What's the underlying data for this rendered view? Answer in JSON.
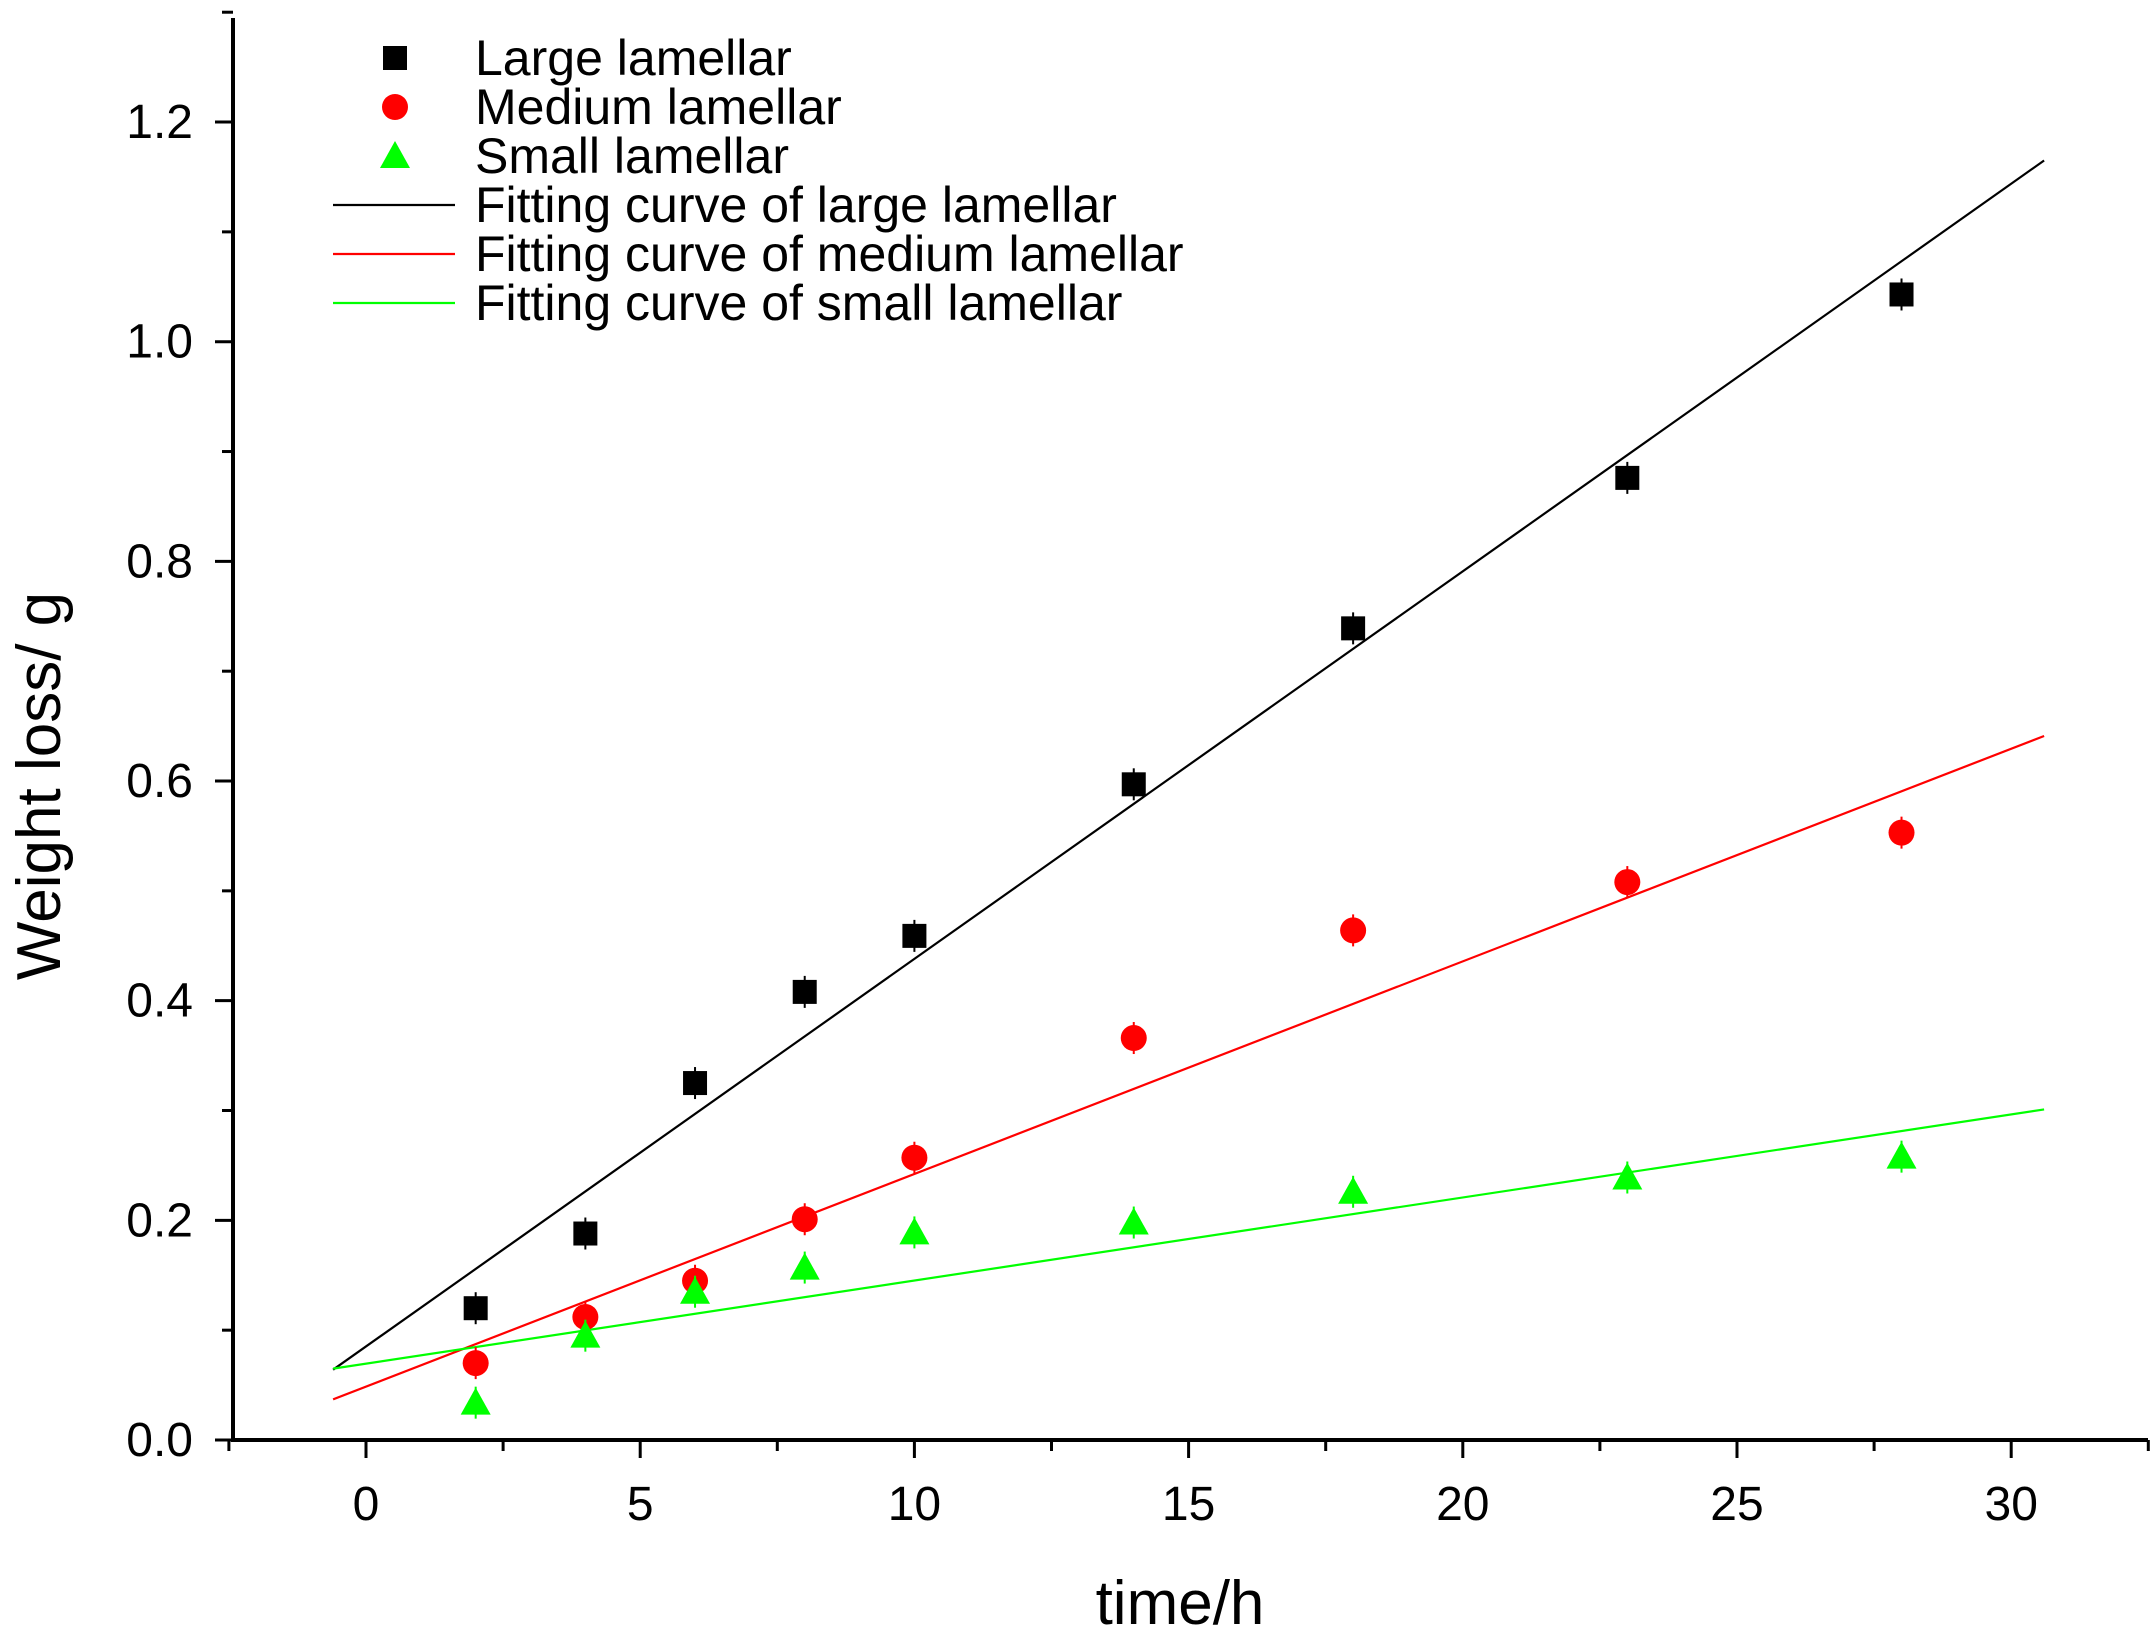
{
  "chart_data": {
    "type": "scatter",
    "title": "",
    "xlabel": "time/h",
    "ylabel": "Weight loss/ g",
    "xlim": [
      -2.5,
      32.5
    ],
    "ylim": [
      0.0,
      1.3
    ],
    "x_ticks": [
      0,
      5,
      10,
      15,
      20,
      25,
      30
    ],
    "x_tick_labels": [
      "0",
      "5",
      "10",
      "15",
      "20",
      "25",
      "30"
    ],
    "y_ticks": [
      0.0,
      0.2,
      0.4,
      0.6,
      0.8,
      1.0,
      1.2
    ],
    "y_tick_labels": [
      "0.0",
      "0.2",
      "0.4",
      "0.6",
      "0.8",
      "1.0",
      "1.2"
    ],
    "grid": false,
    "legend_position": "top-left",
    "series": [
      {
        "name": "Large lamellar",
        "kind": "scatter",
        "marker": "square",
        "color": "#000000",
        "x": [
          2,
          4,
          6,
          8,
          10,
          14,
          18,
          23,
          28
        ],
        "y": [
          0.12,
          0.188,
          0.325,
          0.408,
          0.459,
          0.597,
          0.739,
          0.876,
          1.043
        ]
      },
      {
        "name": "Medium lamellar",
        "kind": "scatter",
        "marker": "circle",
        "color": "#ff0000",
        "x": [
          2,
          4,
          6,
          8,
          10,
          14,
          18,
          23,
          28
        ],
        "y": [
          0.07,
          0.112,
          0.145,
          0.201,
          0.257,
          0.366,
          0.464,
          0.508,
          0.553
        ]
      },
      {
        "name": "Small lamellar",
        "kind": "scatter",
        "marker": "triangle",
        "color": "#00ff00",
        "x": [
          2,
          4,
          6,
          8,
          10,
          14,
          18,
          23,
          28
        ],
        "y": [
          0.034,
          0.095,
          0.135,
          0.157,
          0.189,
          0.198,
          0.226,
          0.239,
          0.258
        ]
      },
      {
        "name": "Fitting curve of large lamellar",
        "kind": "line",
        "color": "#000000",
        "x": [
          -0.6,
          30.6
        ],
        "y": [
          0.064,
          1.165
        ]
      },
      {
        "name": "Fitting curve of medium lamellar",
        "kind": "line",
        "color": "#ff0000",
        "x": [
          -0.6,
          30.6
        ],
        "y": [
          0.037,
          0.641
        ]
      },
      {
        "name": "Fitting curve of small lamellar",
        "kind": "line",
        "color": "#00ff00",
        "x": [
          -0.6,
          30.6
        ],
        "y": [
          0.065,
          0.301
        ]
      }
    ]
  }
}
